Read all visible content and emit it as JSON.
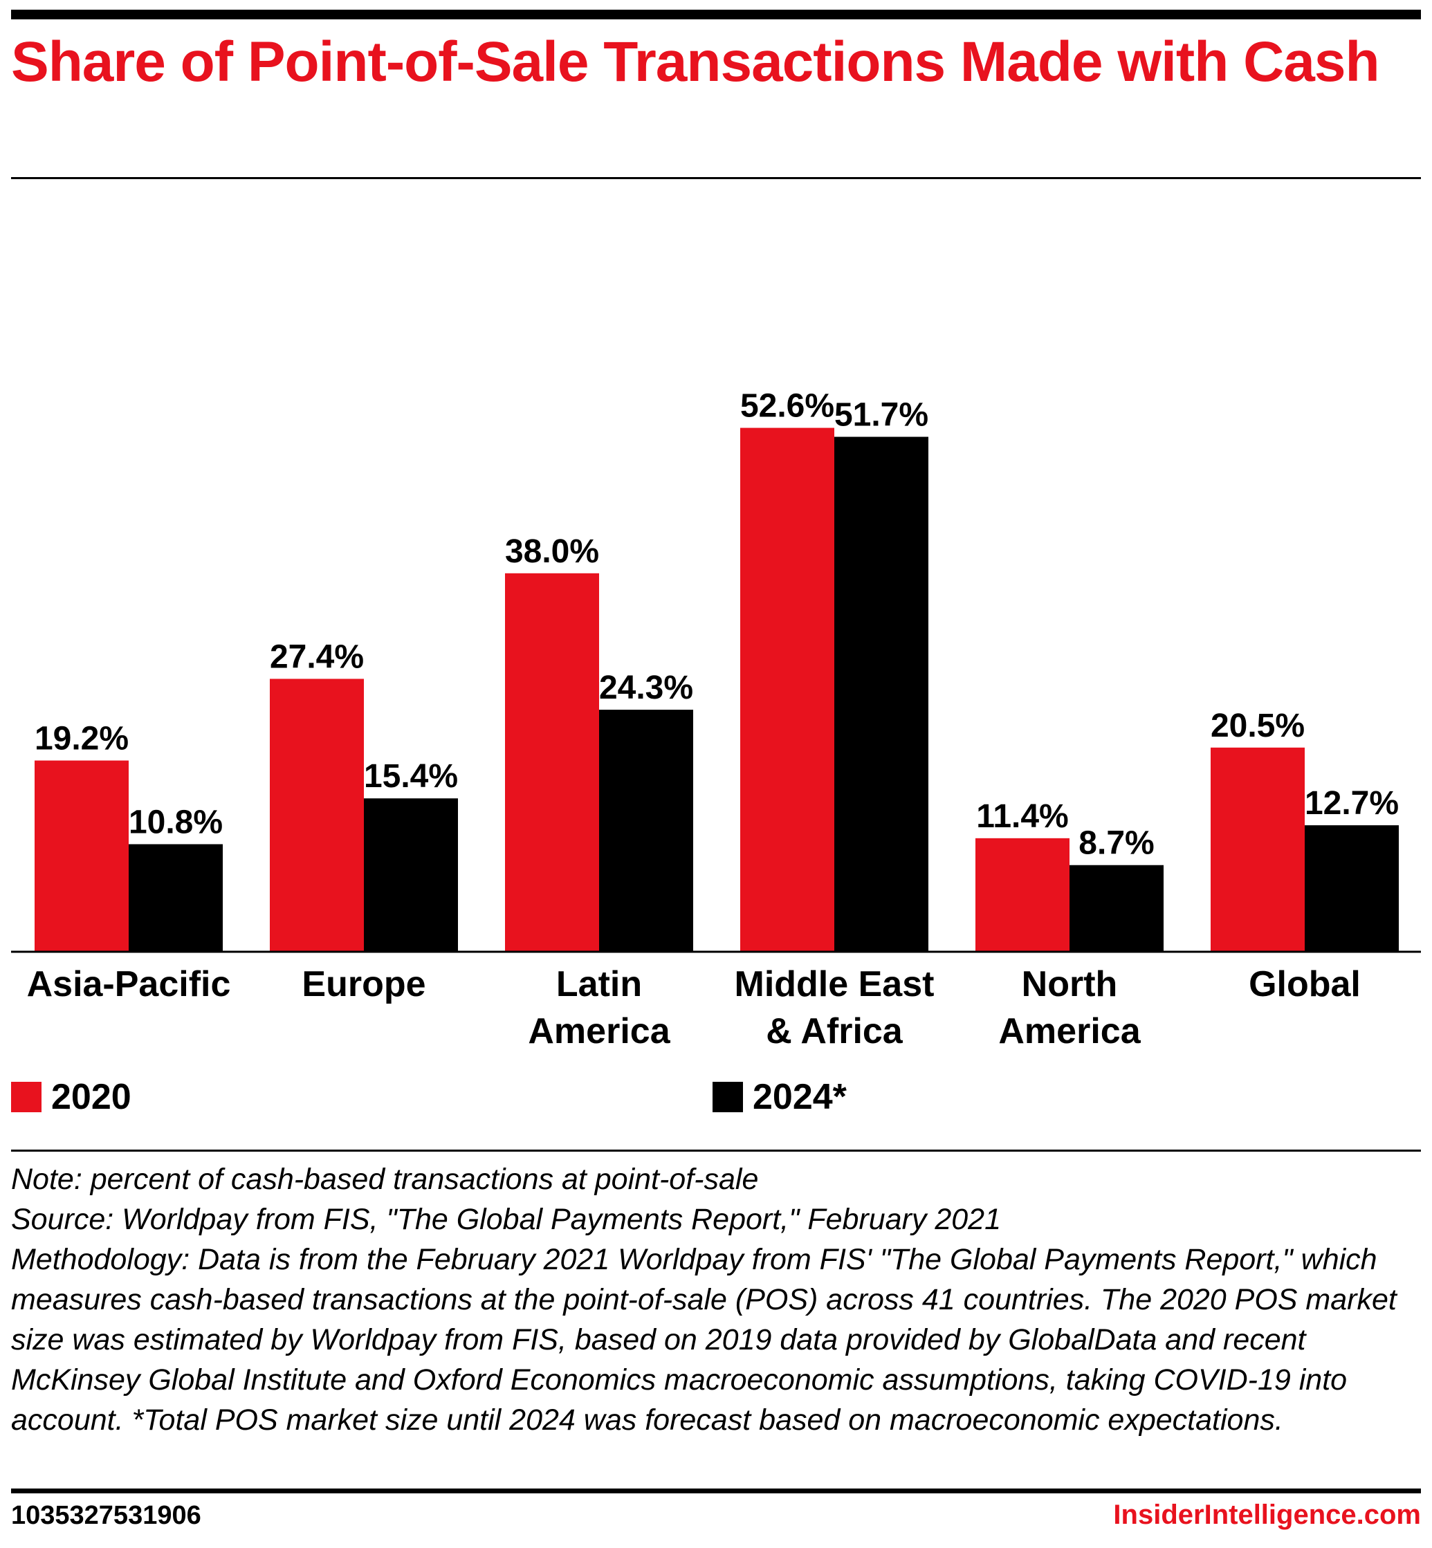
{
  "colors": {
    "series_2020": "#e8121e",
    "series_2024": "#000000",
    "title": "#e8121e"
  },
  "chart_data": {
    "type": "bar",
    "title": "Share of Point-of-Sale Transactions Made with Cash",
    "categories": [
      [
        "Asia-Pacific"
      ],
      [
        "Europe"
      ],
      [
        "Latin",
        "America"
      ],
      [
        "Middle East",
        "& Africa"
      ],
      [
        "North",
        "America"
      ],
      [
        "Global"
      ]
    ],
    "series": [
      {
        "name": "2020",
        "color": "#e8121e",
        "values": [
          19.2,
          27.4,
          38.0,
          52.6,
          11.4,
          20.5
        ]
      },
      {
        "name": "2024*",
        "color": "#000000",
        "values": [
          10.8,
          15.4,
          24.3,
          51.7,
          8.7,
          12.7
        ]
      }
    ],
    "value_suffix": "%",
    "ylim": [
      0,
      55
    ],
    "grid": false,
    "legend_position": "bottom"
  },
  "notes": {
    "note": "Note: percent of cash-based transactions at point-of-sale",
    "source": "Source: Worldpay from FIS, \"The Global Payments Report,\" February 2021",
    "methodology": "Methodology: Data is from the February 2021 Worldpay from FIS' \"The Global Payments Report,\" which measures cash-based transactions at the point-of-sale (POS) across 41 countries. The 2020 POS market size was estimated by Worldpay from FIS, based on 2019 data provided by GlobalData and recent McKinsey Global Institute and Oxford Economics macroeconomic assumptions, taking COVID-19 into account. *Total POS market size until 2024 was forecast based on macroeconomic expectations."
  },
  "footer": {
    "chart_id": "1035327531906",
    "brand": "InsiderIntelligence.com"
  }
}
